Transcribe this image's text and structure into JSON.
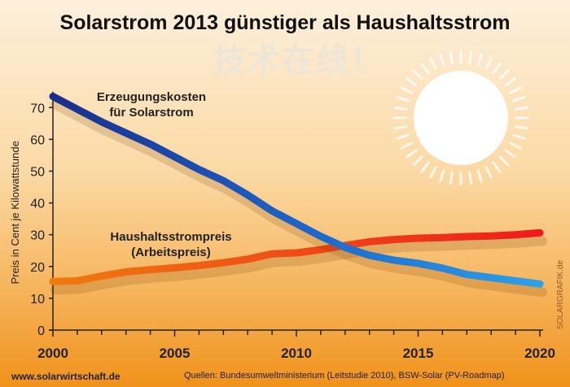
{
  "title": "Solarstrom 2013 günstiger als Haushaltsstrom",
  "footer": {
    "website": "www.solarwirtschaft.de",
    "sources": "Quellen: Bundesumweltministerium (Leitstudie 2010), BSW-Solar (PV-Roadmap)",
    "credit": "SOLARGRAFIK.de",
    "watermark": "技术在线！"
  },
  "colors": {
    "solar": "#1e62c8",
    "household": "#ee4a12",
    "background": "#f6b45c"
  },
  "chart_data": {
    "type": "line",
    "title": "Solarstrom 2013 günstiger als Haushaltsstrom",
    "ylabel": "Preis in Cent je Kilowattstunde",
    "xlabel": "",
    "xlim": [
      2000,
      2020
    ],
    "ylim": [
      0,
      75
    ],
    "grid": false,
    "x_ticks": [
      "2000",
      "2005",
      "2010",
      "2015",
      "2020"
    ],
    "y_ticks": [
      "0",
      "10",
      "20",
      "30",
      "40",
      "50",
      "60",
      "70"
    ],
    "x": [
      2000,
      2001,
      2002,
      2003,
      2004,
      2005,
      2006,
      2007,
      2008,
      2009,
      2010,
      2011,
      2012,
      2013,
      2014,
      2015,
      2016,
      2017,
      2018,
      2019,
      2020
    ],
    "series": [
      {
        "name": "Erzeugungskosten für Solarstrom",
        "label_lines": [
          "Erzeugungskosten",
          "für Solarstrom"
        ],
        "values": [
          73.5,
          69.5,
          65.5,
          62,
          58.5,
          54.5,
          50.5,
          47,
          42.5,
          37.5,
          33.5,
          29.5,
          26,
          23.5,
          22,
          21,
          19.5,
          17.5,
          16.5,
          15.5,
          14.5
        ]
      },
      {
        "name": "Haushaltsstrompreis (Arbeitspreis)",
        "label_lines": [
          "Haushaltsstrompreis",
          "(Arbeitspreis)"
        ],
        "values": [
          15.3,
          15.5,
          17,
          18.3,
          19,
          19.6,
          20.3,
          21.2,
          22.3,
          24,
          24.3,
          25.3,
          26.6,
          27.8,
          28.5,
          28.9,
          29.1,
          29.4,
          29.6,
          30,
          30.6
        ]
      }
    ]
  }
}
